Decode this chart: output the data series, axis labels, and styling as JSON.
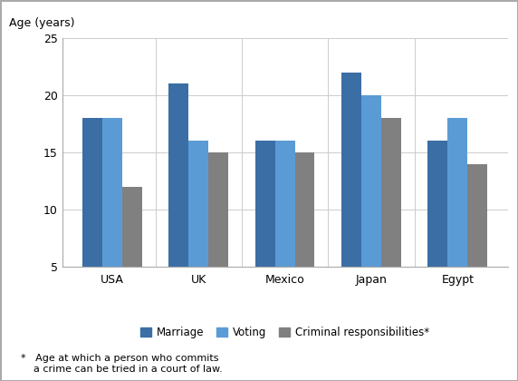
{
  "categories": [
    "USA",
    "UK",
    "Mexico",
    "Japan",
    "Egypt"
  ],
  "series": {
    "Marriage": [
      18,
      21,
      16,
      22,
      16
    ],
    "Voting": [
      18,
      16,
      16,
      20,
      18
    ],
    "Criminal responsibilities*": [
      12,
      15,
      15,
      18,
      14
    ]
  },
  "colors": {
    "Marriage": "#3B6EA5",
    "Voting": "#5B9BD5",
    "Criminal responsibilities*": "#808080"
  },
  "ylabel": "Age (years)",
  "ylim": [
    5,
    25
  ],
  "yticks": [
    5,
    10,
    15,
    20,
    25
  ],
  "legend_labels": [
    "Marriage",
    "Voting",
    "Criminal responsibilities*"
  ],
  "footnote": "*   Age at which a person who commits\n    a crime can be tried in a court of law.",
  "bar_width": 0.23,
  "figsize": [
    5.72,
    4.2
  ],
  "dpi": 100
}
